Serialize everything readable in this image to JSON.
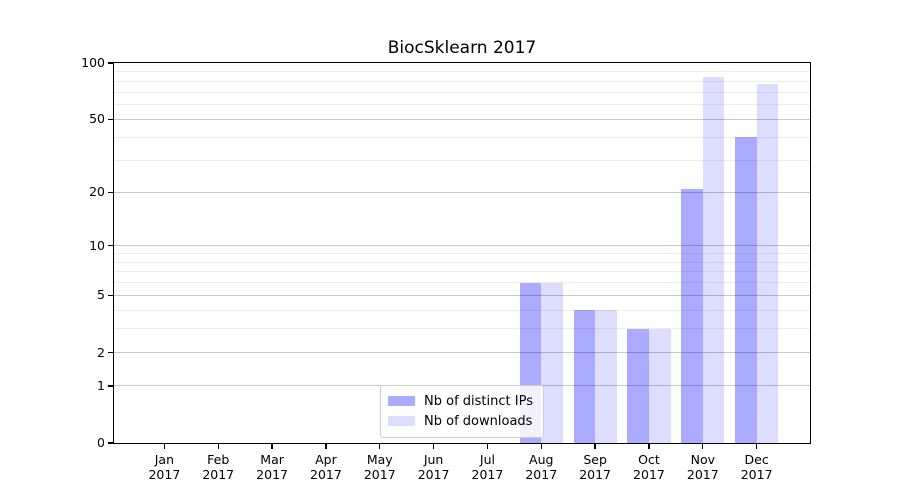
{
  "chart_data": {
    "type": "bar",
    "title": "BiocSklearn 2017",
    "year_label": "2017",
    "months": [
      "Jan",
      "Feb",
      "Mar",
      "Apr",
      "May",
      "Jun",
      "Jul",
      "Aug",
      "Sep",
      "Oct",
      "Nov",
      "Dec"
    ],
    "series": [
      {
        "name": "Nb of distinct IPs",
        "color": "#aaaaff",
        "values": [
          0,
          0,
          0,
          0,
          0,
          0,
          0,
          6,
          4,
          3,
          21,
          40
        ]
      },
      {
        "name": "Nb of downloads",
        "color": "#ddddff",
        "values": [
          0,
          0,
          0,
          0,
          0,
          0,
          0,
          6,
          4,
          3,
          84,
          77
        ]
      }
    ],
    "yscale": "log10(1+value)",
    "ylim": [
      0,
      100
    ],
    "yticks": [
      0,
      1,
      2,
      5,
      10,
      20,
      50,
      100
    ],
    "yticks_minor": [
      3,
      4,
      6,
      7,
      8,
      9,
      30,
      40,
      60,
      70,
      80,
      90
    ],
    "grid": "horizontal",
    "legend_position": "lower center"
  },
  "colors": {
    "background": "#ffffff",
    "axis": "#000000",
    "grid_major": "rgba(0,0,0,0.22)",
    "grid_minor": "rgba(0,0,0,0.07)",
    "bar_distinct_ips": "#aaaaff",
    "bar_downloads": "#ddddff",
    "legend_border": "#cccccc"
  }
}
